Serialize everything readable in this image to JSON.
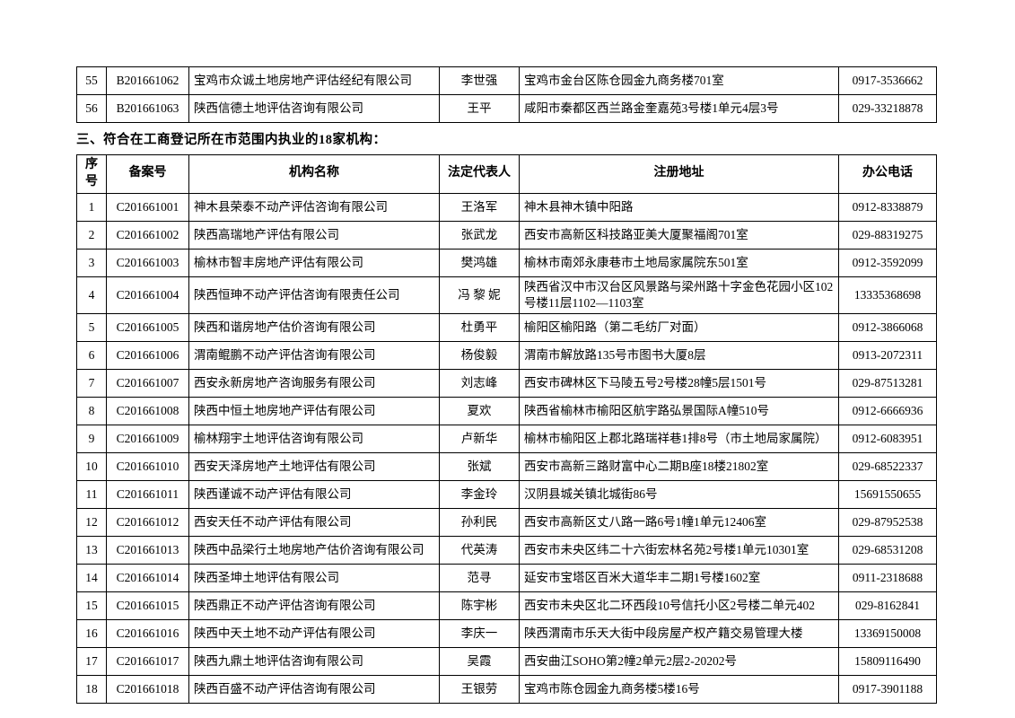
{
  "section_heading": "三、符合在工商登记所在市范围内执业的18家机构：",
  "columns": {
    "seq": "序号",
    "record_no": "备案号",
    "name": "机构名称",
    "rep": "法定代表人",
    "address": "注册地址",
    "phone": "办公电话"
  },
  "prev_table_rows": [
    {
      "seq": "55",
      "record_no": "B201661062",
      "name": "宝鸡市众诚土地房地产评估经纪有限公司",
      "rep": "李世强",
      "address": "宝鸡市金台区陈仓园金九商务楼701室",
      "phone": "0917-3536662"
    },
    {
      "seq": "56",
      "record_no": "B201661063",
      "name": "陕西信德土地评估咨询有限公司",
      "rep": "王平",
      "address": "咸阳市秦都区西兰路金奎嘉苑3号楼1单元4层3号",
      "phone": "029-33218878"
    }
  ],
  "main_table_rows": [
    {
      "seq": "1",
      "record_no": "C201661001",
      "name": "神木县荣泰不动产评估咨询有限公司",
      "rep": "王洛军",
      "address": "神木县神木镇中阳路",
      "phone": "0912-8338879"
    },
    {
      "seq": "2",
      "record_no": "C201661002",
      "name": "陕西高瑞地产评估有限公司",
      "rep": "张武龙",
      "address": "西安市高新区科技路亚美大厦聚福阁701室",
      "phone": "029-88319275"
    },
    {
      "seq": "3",
      "record_no": "C201661003",
      "name": "榆林市智丰房地产评估有限公司",
      "rep": "樊鸿雄",
      "address": "榆林市南郊永康巷市土地局家属院东501室",
      "phone": "0912-3592099"
    },
    {
      "seq": "4",
      "record_no": "C201661004",
      "name": "陕西恒珅不动产评估咨询有限责任公司",
      "rep": "冯 黎 妮",
      "address": "陕西省汉中市汉台区风景路与梁州路十字金色花园小区102号楼11层1102—1103室",
      "phone": "13335368698"
    },
    {
      "seq": "5",
      "record_no": "C201661005",
      "name": "陕西和谐房地产估价咨询有限公司",
      "rep": "杜勇平",
      "address": "榆阳区榆阳路（第二毛纺厂对面）",
      "phone": "0912-3866068"
    },
    {
      "seq": "6",
      "record_no": "C201661006",
      "name": "渭南鲲鹏不动产评估咨询有限公司",
      "rep": "杨俊毅",
      "address": "渭南市解放路135号市图书大厦8层",
      "phone": "0913-2072311"
    },
    {
      "seq": "7",
      "record_no": "C201661007",
      "name": "西安永新房地产咨询服务有限公司",
      "rep": "刘志峰",
      "address": "西安市碑林区下马陵五号2号楼28幢5层1501号",
      "phone": "029-87513281"
    },
    {
      "seq": "8",
      "record_no": "C201661008",
      "name": "陕西中恒土地房地产评估有限公司",
      "rep": "夏欢",
      "address": "陕西省榆林市榆阳区航宇路弘景国际A幢510号",
      "phone": "0912-6666936"
    },
    {
      "seq": "9",
      "record_no": "C201661009",
      "name": "榆林翔宇土地评估咨询有限公司",
      "rep": "卢新华",
      "address": "榆林市榆阳区上郡北路瑞祥巷1排8号（市土地局家属院）",
      "phone": "0912-6083951"
    },
    {
      "seq": "10",
      "record_no": "C201661010",
      "name": "西安天泽房地产土地评估有限公司",
      "rep": "张斌",
      "address": "西安市高新三路财富中心二期B座18楼21802室",
      "phone": "029-68522337"
    },
    {
      "seq": "11",
      "record_no": "C201661011",
      "name": "陕西谨诚不动产评估有限公司",
      "rep": "李金玲",
      "address": "汉阴县城关镇北城街86号",
      "phone": "15691550655"
    },
    {
      "seq": "12",
      "record_no": "C201661012",
      "name": "西安天任不动产评估有限公司",
      "rep": "孙利民",
      "address": "西安市高新区丈八路一路6号1幢1单元12406室",
      "phone": "029-87952538"
    },
    {
      "seq": "13",
      "record_no": "C201661013",
      "name": "陕西中品梁行土地房地产估价咨询有限公司",
      "rep": "代英涛",
      "address": "西安市未央区纬二十六街宏林名苑2号楼1单元10301室",
      "phone": "029-68531208"
    },
    {
      "seq": "14",
      "record_no": "C201661014",
      "name": "陕西圣坤土地评估有限公司",
      "rep": "范寻",
      "address": "延安市宝塔区百米大道华丰二期1号楼1602室",
      "phone": "0911-2318688"
    },
    {
      "seq": "15",
      "record_no": "C201661015",
      "name": "陕西鼎正不动产评估咨询有限公司",
      "rep": "陈宇彬",
      "address": "西安市未央区北二环西段10号信托小区2号楼二单元402",
      "phone": "029-8162841"
    },
    {
      "seq": "16",
      "record_no": "C201661016",
      "name": "陕西中天土地不动产评估有限公司",
      "rep": "李庆一",
      "address": "陕西渭南市乐天大街中段房屋产权产籍交易管理大楼",
      "phone": "13369150008"
    },
    {
      "seq": "17",
      "record_no": "C201661017",
      "name": "陕西九鼎土地评估咨询有限公司",
      "rep": "吴霞",
      "address": "西安曲江SOHO第2幢2单元2层2-20202号",
      "phone": "15809116490"
    },
    {
      "seq": "18",
      "record_no": "C201661018",
      "name": "陕西百盛不动产评估咨询有限公司",
      "rep": "王银劳",
      "address": "宝鸡市陈仓园金九商务楼5楼16号",
      "phone": "0917-3901188"
    }
  ]
}
